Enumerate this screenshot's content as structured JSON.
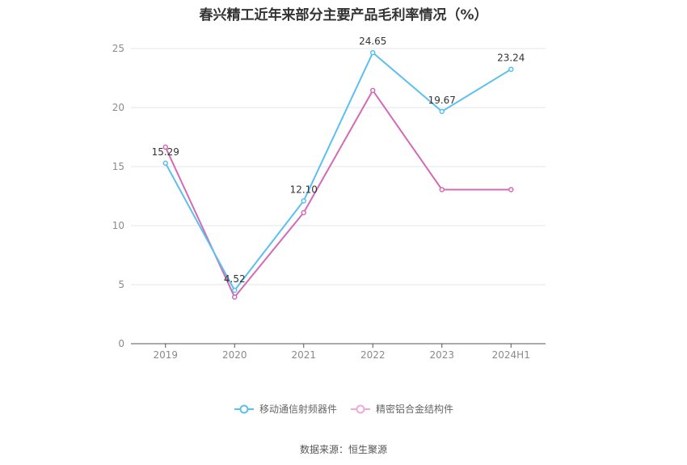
{
  "chart_data": {
    "type": "line",
    "title": "春兴精工近年来部分主要产品毛利率情况（%）",
    "xlabel": "",
    "ylabel": "",
    "categories": [
      "2019",
      "2020",
      "2021",
      "2022",
      "2023",
      "2024H1"
    ],
    "ylim": [
      0,
      25
    ],
    "yticks": [
      0,
      5,
      10,
      15,
      20,
      25
    ],
    "grid": true,
    "legend_position": "bottom",
    "series": [
      {
        "name": "移动通信射频器件",
        "color": "#5bc0f0",
        "values": [
          15.29,
          4.52,
          12.1,
          24.65,
          19.67,
          23.24
        ],
        "labels": [
          "15.29",
          "4.52",
          "12.10",
          "24.65",
          "19.67",
          "23.24"
        ]
      },
      {
        "name": "精密铝合金结构件",
        "color": "#d36bb4",
        "values": [
          16.65,
          3.95,
          11.1,
          21.45,
          13.05,
          13.05
        ]
      }
    ]
  },
  "source": "数据来源：恒生聚源"
}
